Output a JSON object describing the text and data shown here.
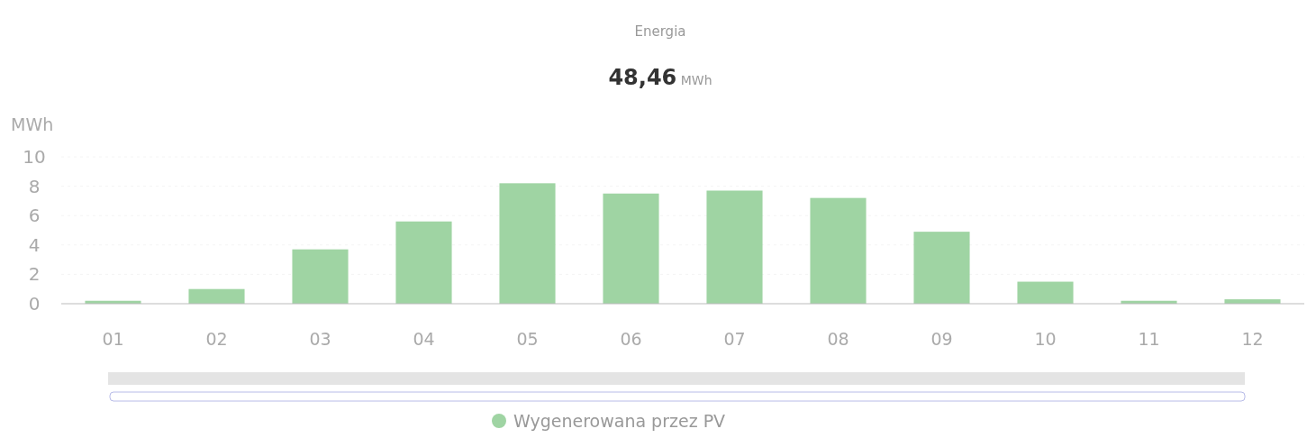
{
  "chart_data": {
    "type": "bar",
    "title": "Energia",
    "subtitle": "48,46 MWh",
    "ylabel": "MWh",
    "categories": [
      "01",
      "02",
      "03",
      "04",
      "05",
      "06",
      "07",
      "08",
      "09",
      "10",
      "11",
      "12"
    ],
    "series": [
      {
        "name": "Wygenerowana przez PV",
        "color": "#9fd4a3",
        "values": [
          0.2,
          1.0,
          3.7,
          5.6,
          8.2,
          7.5,
          7.7,
          7.2,
          4.9,
          1.5,
          0.2,
          0.3
        ]
      }
    ],
    "ylim": [
      0,
      10
    ],
    "yticks": [
      0,
      2,
      4,
      6,
      8,
      10
    ],
    "grid": "y",
    "legend": "bottom"
  }
}
